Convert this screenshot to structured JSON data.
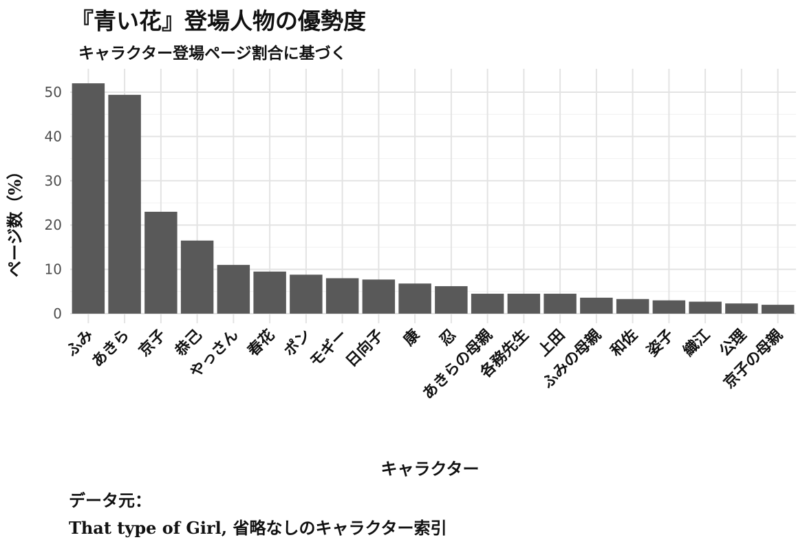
{
  "title": "『青い花』登場人物の優勢度",
  "subtitle": "キャラクター登場ページ割合に基づく",
  "caption_line1": "データ元：",
  "caption_line2": "That type of Girl, 省略なしのキャラクター索引",
  "chart_data": {
    "type": "bar",
    "title": "『青い花』登場人物の優勢度",
    "subtitle": "キャラクター登場ページ割合に基づく",
    "xlabel": "キャラクター",
    "ylabel": "ページ数（%）",
    "categories": [
      "ふみ",
      "あきら",
      "京子",
      "恭己",
      "やっさん",
      "春花",
      "ポン",
      "モギー",
      "日向子",
      "康",
      "忍",
      "あきらの母親",
      "各務先生",
      "上田",
      "ふみの母親",
      "和佐",
      "姿子",
      "織江",
      "公理",
      "京子の母親"
    ],
    "values": [
      52.0,
      49.4,
      23.0,
      16.5,
      11.0,
      9.5,
      8.8,
      8.0,
      7.7,
      6.8,
      6.2,
      4.5,
      4.5,
      4.5,
      3.6,
      3.3,
      3.0,
      2.7,
      2.3,
      2.0
    ],
    "yticks": [
      0,
      10,
      20,
      30,
      40,
      50
    ],
    "ylim": [
      0,
      53
    ],
    "grid": true,
    "bar_color": "#595959"
  }
}
